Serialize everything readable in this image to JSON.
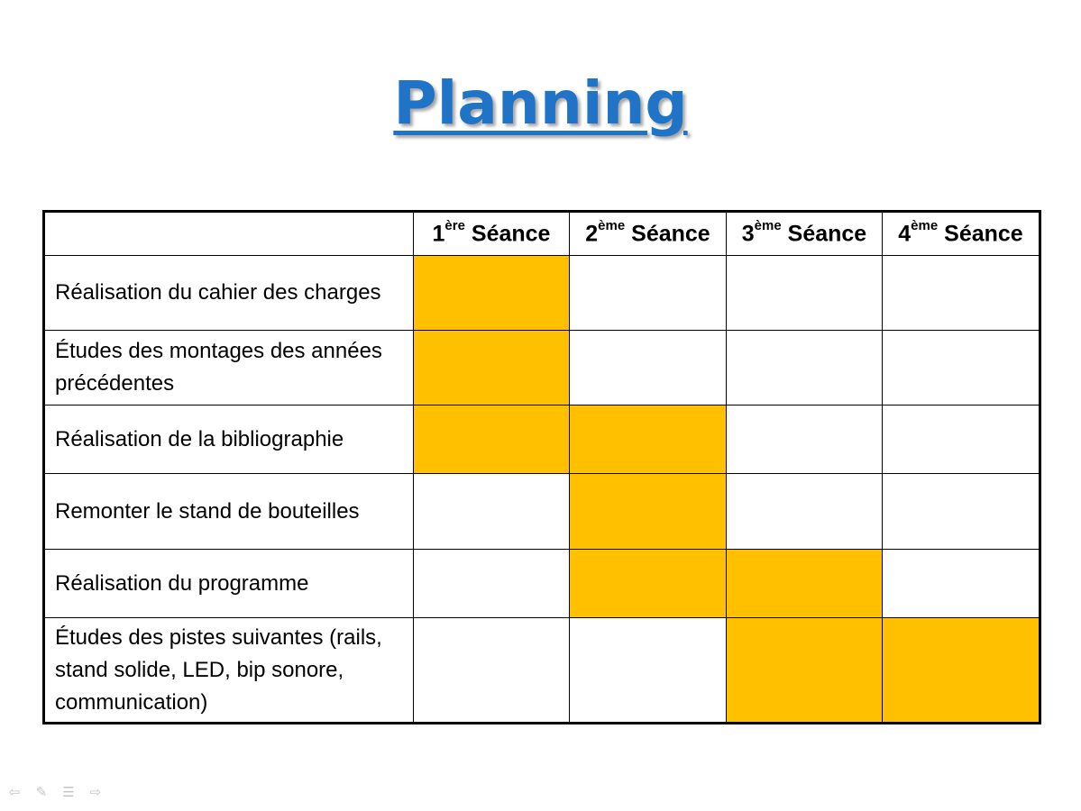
{
  "slide": {
    "title": "Planning"
  },
  "table": {
    "corner_label": "",
    "columns": [
      {
        "num": "1",
        "sup": "ère",
        "label": " Séance"
      },
      {
        "num": "2",
        "sup": "ème",
        "label": " Séance"
      },
      {
        "num": "3",
        "sup": "ème",
        "label": " Séance"
      },
      {
        "num": "4",
        "sup": "ème",
        "label": " Séance"
      }
    ],
    "rows": [
      {
        "task": "Réalisation du cahier des charges",
        "sessions": [
          true,
          false,
          false,
          false
        ]
      },
      {
        "task": "Études des montages des années précédentes",
        "sessions": [
          true,
          false,
          false,
          false
        ]
      },
      {
        "task": "Réalisation de la bibliographie",
        "sessions": [
          true,
          true,
          false,
          false
        ]
      },
      {
        "task": "Remonter le stand de bouteilles",
        "sessions": [
          false,
          true,
          false,
          false
        ]
      },
      {
        "task": "Réalisation du programme",
        "sessions": [
          false,
          true,
          true,
          false
        ]
      },
      {
        "task": "Études des pistes suivantes (rails, stand solide, LED, bip sonore, communication)",
        "sessions": [
          false,
          false,
          true,
          true
        ]
      }
    ],
    "fill_color": "#ffc000"
  },
  "nav": {
    "icons": [
      "previous-icon",
      "pen-icon",
      "menu-icon",
      "next-icon"
    ]
  },
  "colors": {
    "title": "#1f74c7",
    "highlight": "#ffc000"
  }
}
